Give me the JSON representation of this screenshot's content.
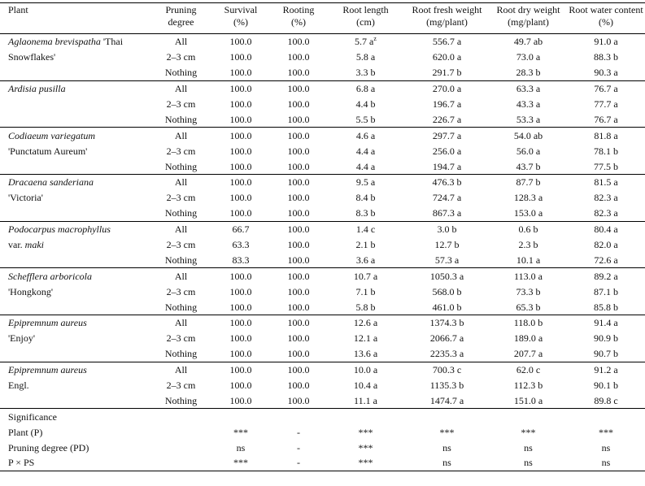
{
  "header": [
    [
      "Plant"
    ],
    [
      "Pruning",
      "degree"
    ],
    [
      "Survival",
      "(%)"
    ],
    [
      "Rooting",
      "(%)"
    ],
    [
      "Root length",
      "(cm)"
    ],
    [
      "Root fresh weight",
      "(mg/plant)"
    ],
    [
      "Root dry  weight",
      "(mg/plant)"
    ],
    [
      "Root water content",
      "(%)"
    ]
  ],
  "groups": [
    {
      "plant_lines": [
        [
          {
            "text": "Aglaonema brevispatha",
            "italic": true
          },
          {
            "text": "'Thai"
          }
        ],
        [
          {
            "text": "Snowflakes'"
          }
        ]
      ],
      "rows": [
        {
          "degree": "All",
          "values": [
            "100.0",
            "100.0",
            {
              "text": "5.7 a",
              "sup": "z"
            },
            "556.7 a",
            "49.7 ab",
            "91.0 a"
          ]
        },
        {
          "degree": "2–3 cm",
          "values": [
            "100.0",
            "100.0",
            "5.8 a",
            "620.0 a",
            "73.0 a",
            "88.3 b"
          ]
        },
        {
          "degree": "Nothing",
          "values": [
            "100.0",
            "100.0",
            "3.3 b",
            "291.7 b",
            "28.3 b",
            "90.3 a"
          ]
        }
      ]
    },
    {
      "plant_lines": [
        [
          {
            "text": "Ardisia pusilla",
            "italic": true
          }
        ]
      ],
      "rows": [
        {
          "degree": "All",
          "values": [
            "100.0",
            "100.0",
            "6.8 a",
            "270.0 a",
            "63.3 a",
            "76.7 a"
          ]
        },
        {
          "degree": "2–3 cm",
          "values": [
            "100.0",
            "100.0",
            "4.4 b",
            "196.7 a",
            "43.3 a",
            "77.7 a"
          ]
        },
        {
          "degree": "Nothing",
          "values": [
            "100.0",
            "100.0",
            "5.5 b",
            "226.7 a",
            "53.3 a",
            "76.7 a"
          ]
        }
      ]
    },
    {
      "plant_lines": [
        [
          {
            "text": "Codiaeum variegatum",
            "italic": true
          }
        ],
        [
          {
            "text": "'Punctatum Aureum'"
          }
        ]
      ],
      "rows": [
        {
          "degree": "All",
          "values": [
            "100.0",
            "100.0",
            "4.6 a",
            "297.7 a",
            "54.0 ab",
            "81.8 a"
          ]
        },
        {
          "degree": "2–3 cm",
          "values": [
            "100.0",
            "100.0",
            "4.4 a",
            "256.0 a",
            "56.0 a",
            "78.1 b"
          ]
        },
        {
          "degree": "Nothing",
          "values": [
            "100.0",
            "100.0",
            "4.4 a",
            "194.7 a",
            "43.7 b",
            "77.5 b"
          ]
        }
      ]
    },
    {
      "plant_lines": [
        [
          {
            "text": "Dracaena sanderiana",
            "italic": true
          }
        ],
        [
          {
            "text": "'Victoria'"
          }
        ]
      ],
      "rows": [
        {
          "degree": "All",
          "values": [
            "100.0",
            "100.0",
            "9.5 a",
            "476.3 b",
            "87.7 b",
            "81.5 a"
          ]
        },
        {
          "degree": "2–3 cm",
          "values": [
            "100.0",
            "100.0",
            "8.4 b",
            "724.7 a",
            "128.3 a",
            "82.3 a"
          ]
        },
        {
          "degree": "Nothing",
          "values": [
            "100.0",
            "100.0",
            "8.3 b",
            "867.3 a",
            "153.0 a",
            "82.3 a"
          ]
        }
      ]
    },
    {
      "plant_lines": [
        [
          {
            "text": "Podocarpus macrophyllus",
            "italic": true
          }
        ],
        [
          {
            "text": "var."
          },
          {
            "text": "maki",
            "italic": true
          }
        ]
      ],
      "rows": [
        {
          "degree": "All",
          "values": [
            "66.7",
            "100.0",
            "1.4 c",
            "3.0 b",
            "0.6 b",
            "80.4 a"
          ]
        },
        {
          "degree": "2–3 cm",
          "values": [
            "63.3",
            "100.0",
            "2.1 b",
            "12.7 b",
            "2.3 b",
            "82.0 a"
          ]
        },
        {
          "degree": "Nothing",
          "values": [
            "83.3",
            "100.0",
            "3.6 a",
            "57.3 a",
            "10.1 a",
            "72.6 a"
          ]
        }
      ]
    },
    {
      "plant_lines": [
        [
          {
            "text": "Schefflera arboricola",
            "italic": true
          }
        ],
        [
          {
            "text": "'Hongkong'"
          }
        ]
      ],
      "rows": [
        {
          "degree": "All",
          "values": [
            "100.0",
            "100.0",
            "10.7 a",
            "1050.3 a",
            "113.0 a",
            "89.2 a"
          ]
        },
        {
          "degree": "2–3 cm",
          "values": [
            "100.0",
            "100.0",
            "7.1 b",
            "568.0 b",
            "73.3 b",
            "87.1 b"
          ]
        },
        {
          "degree": "Nothing",
          "values": [
            "100.0",
            "100.0",
            "5.8 b",
            "461.0 b",
            "65.3 b",
            "85.8 b"
          ]
        }
      ]
    },
    {
      "plant_lines": [
        [
          {
            "text": "Epipremnum aureus",
            "italic": true
          }
        ],
        [
          {
            "text": "'Enjoy'"
          }
        ]
      ],
      "rows": [
        {
          "degree": "All",
          "values": [
            "100.0",
            "100.0",
            "12.6 a",
            "1374.3 b",
            "118.0 b",
            "91.4 a"
          ]
        },
        {
          "degree": "2–3 cm",
          "values": [
            "100.0",
            "100.0",
            "12.1 a",
            "2066.7 a",
            "189.0 a",
            "90.9 b"
          ]
        },
        {
          "degree": "Nothing",
          "values": [
            "100.0",
            "100.0",
            "13.6 a",
            "2235.3 a",
            "207.7 a",
            "90.7 b"
          ]
        }
      ]
    },
    {
      "plant_lines": [
        [
          {
            "text": "Epipremnum aureus",
            "italic": true
          }
        ],
        [
          {
            "text": "Engl."
          }
        ]
      ],
      "rows": [
        {
          "degree": "All",
          "values": [
            "100.0",
            "100.0",
            "10.0 a",
            "700.3 c",
            "62.0 c",
            "91.2 a"
          ]
        },
        {
          "degree": "2–3 cm",
          "values": [
            "100.0",
            "100.0",
            "10.4 a",
            "1135.3 b",
            "112.3 b",
            "90.1 b"
          ]
        },
        {
          "degree": "Nothing",
          "values": [
            "100.0",
            "100.0",
            "11.1 a",
            "1474.7 a",
            "151.0 a",
            "89.8 c"
          ]
        }
      ]
    }
  ],
  "significance": {
    "title": "Significance",
    "rows": [
      {
        "label": "Plant (P)",
        "values": [
          "***",
          "-",
          "***",
          "***",
          "***",
          "***"
        ]
      },
      {
        "label": "Pruning degree (PD)",
        "values": [
          "ns",
          "-",
          "***",
          "ns",
          "ns",
          "ns"
        ]
      },
      {
        "label": "P × PS",
        "values": [
          "***",
          "-",
          "***",
          "ns",
          "ns",
          "ns"
        ]
      }
    ]
  }
}
